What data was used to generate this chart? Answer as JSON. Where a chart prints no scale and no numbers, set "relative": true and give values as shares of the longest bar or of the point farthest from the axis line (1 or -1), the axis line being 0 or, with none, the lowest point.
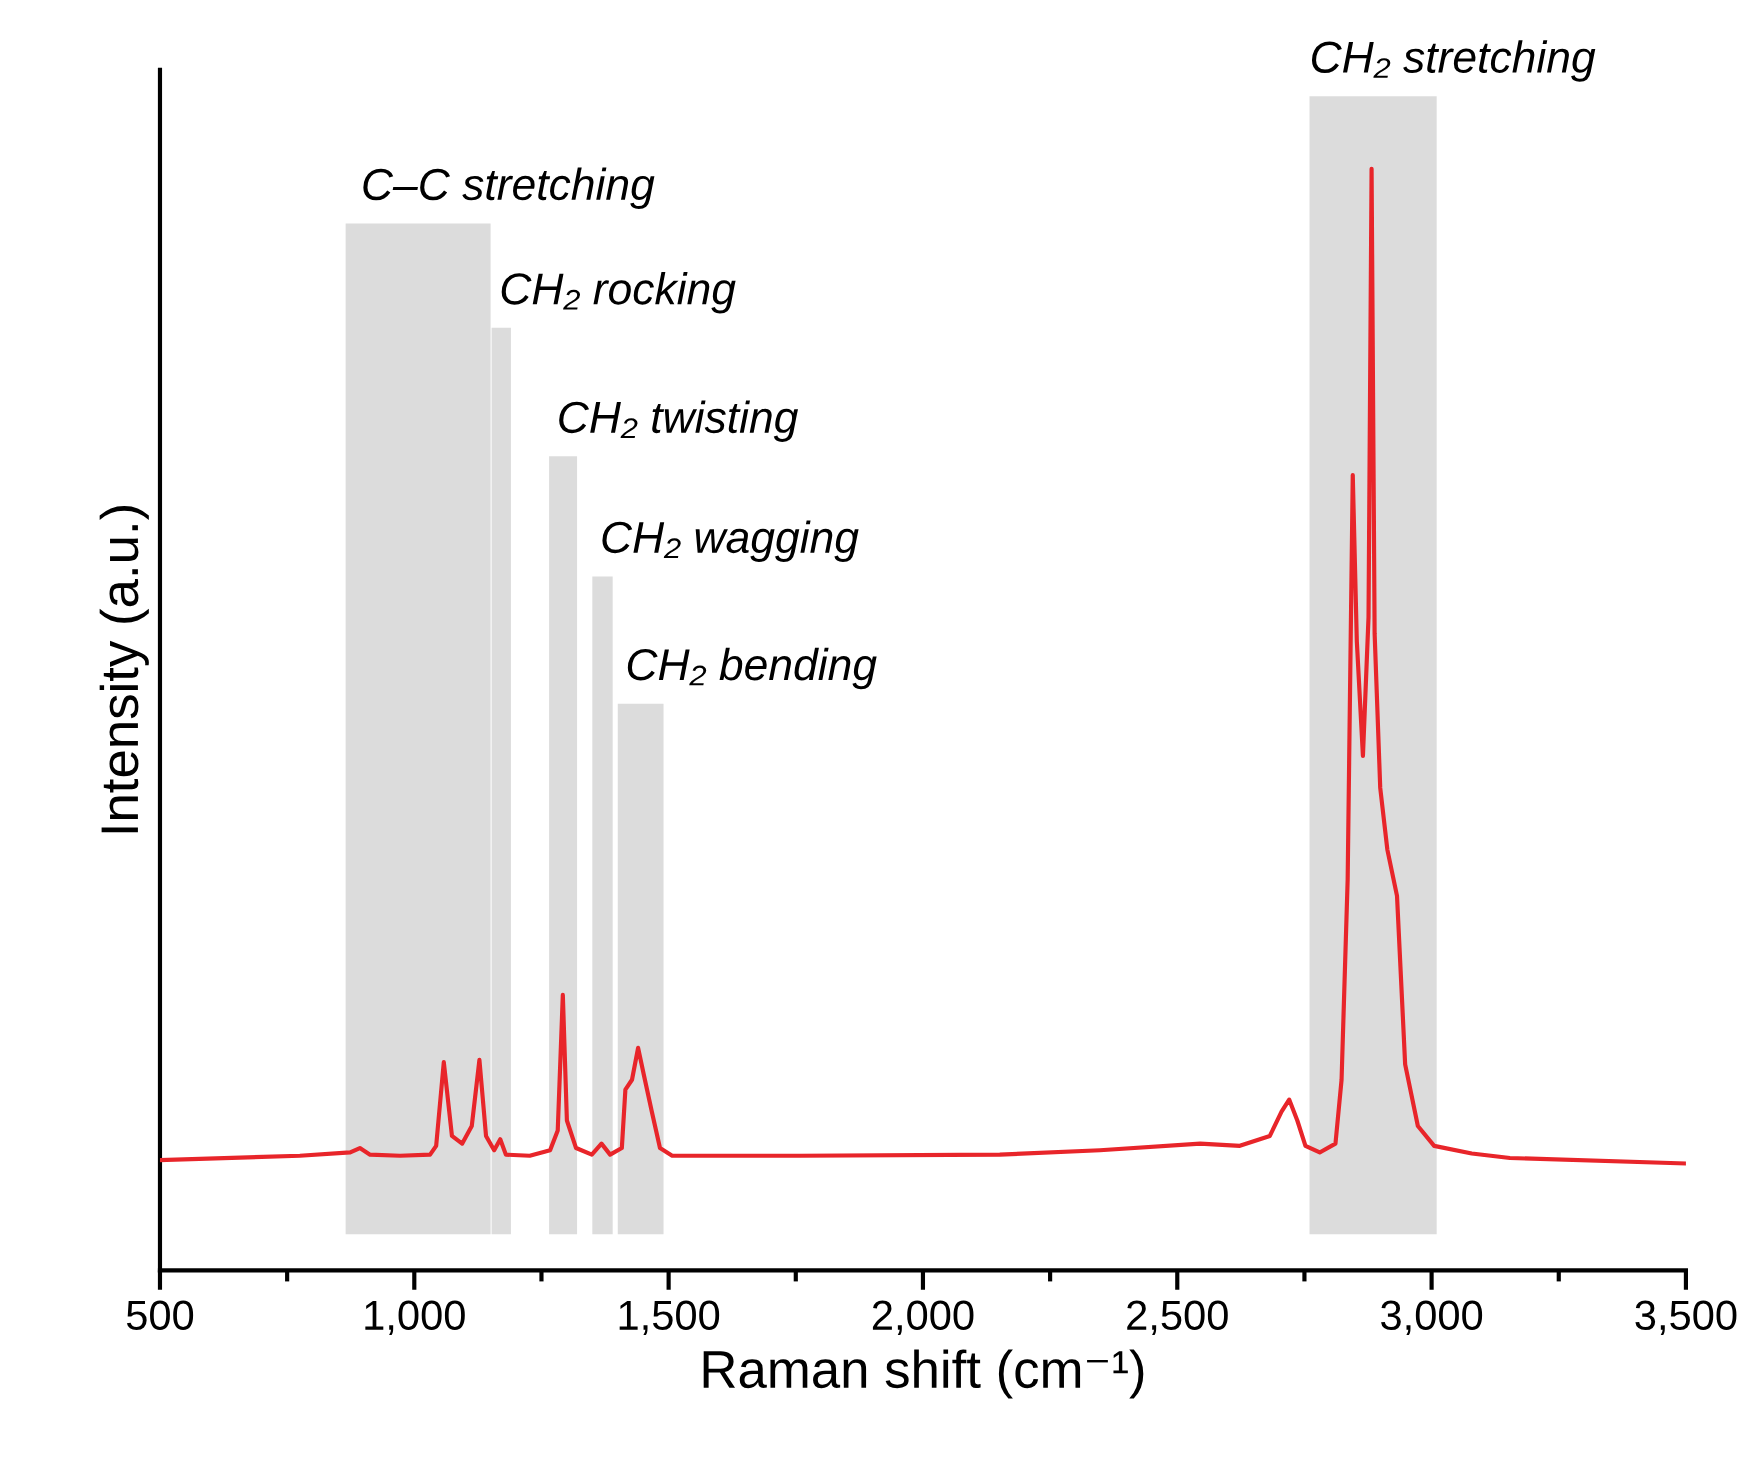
{
  "chart_data": {
    "type": "line",
    "relative": true,
    "xlabel": "Raman shift (cm⁻¹)",
    "ylabel": "Intensity (a.u.)",
    "xlim": [
      500,
      3500
    ],
    "xticks": [
      500,
      {
        "value": 750,
        "label": null
      },
      {
        "value": 1000,
        "label": "1,000"
      },
      {
        "value": 1250,
        "label": null
      },
      {
        "value": 1500,
        "label": "1,500"
      },
      {
        "value": 1750,
        "label": null
      },
      {
        "value": 2000,
        "label": "2,000"
      },
      {
        "value": 2250,
        "label": null
      },
      {
        "value": 2500,
        "label": "2,500"
      },
      {
        "value": 2750,
        "label": null
      },
      {
        "value": 3000,
        "label": "3,000"
      },
      {
        "value": 3250,
        "label": null
      },
      {
        "value": 3500,
        "label": "3,500"
      }
    ],
    "tick_labels": "x",
    "grid": false,
    "legend": false,
    "series": [
      {
        "color": "#e8252a",
        "x": [
          500,
          775,
          874,
          893,
          913,
          972,
          1031,
          1043,
          1058,
          1074,
          1094,
          1113,
          1128,
          1141,
          1157,
          1169,
          1180,
          1227,
          1267,
          1282,
          1292,
          1300,
          1318,
          1349,
          1368,
          1385,
          1408,
          1415,
          1428,
          1440,
          1451,
          1467,
          1483,
          1507,
          1758,
          2151,
          2348,
          2545,
          2623,
          2682,
          2705,
          2720,
          2736,
          2752,
          2780,
          2811,
          2823,
          2835,
          2845,
          2853,
          2865,
          2876,
          2882,
          2888,
          2899,
          2913,
          2932,
          2948,
          2973,
          3005,
          3079,
          3154,
          3500
        ],
        "values": [
          0.1,
          0.104,
          0.107,
          0.111,
          0.105,
          0.104,
          0.105,
          0.113,
          0.189,
          0.122,
          0.115,
          0.131,
          0.191,
          0.122,
          0.109,
          0.119,
          0.105,
          0.104,
          0.109,
          0.127,
          0.25,
          0.136,
          0.111,
          0.105,
          0.115,
          0.105,
          0.111,
          0.164,
          0.173,
          0.202,
          0.178,
          0.144,
          0.111,
          0.104,
          0.104,
          0.105,
          0.109,
          0.115,
          0.113,
          0.122,
          0.144,
          0.155,
          0.136,
          0.113,
          0.107,
          0.115,
          0.173,
          0.355,
          0.722,
          0.571,
          0.467,
          0.593,
          1.0,
          0.578,
          0.438,
          0.382,
          0.34,
          0.187,
          0.131,
          0.113,
          0.106,
          0.102,
          0.097
        ]
      }
    ],
    "bands": [
      {
        "axis": "x",
        "from": 865,
        "to": 1150,
        "label": "C–C stretching",
        "color": "#dcdcdc"
      },
      {
        "axis": "x",
        "from": 1152,
        "to": 1190,
        "label": "CH₂ rocking",
        "color": "#dcdcdc"
      },
      {
        "axis": "x",
        "from": 1265,
        "to": 1320,
        "label": "CH₂ twisting",
        "color": "#dcdcdc"
      },
      {
        "axis": "x",
        "from": 1350,
        "to": 1390,
        "label": "CH₂ wagging",
        "color": "#dcdcdc"
      },
      {
        "axis": "x",
        "from": 1400,
        "to": 1490,
        "label": "CH₂ bending",
        "color": "#dcdcdc"
      },
      {
        "axis": "x",
        "from": 2760,
        "to": 3010,
        "label": "CH₂ stretching",
        "color": "#dcdcdc"
      }
    ]
  }
}
